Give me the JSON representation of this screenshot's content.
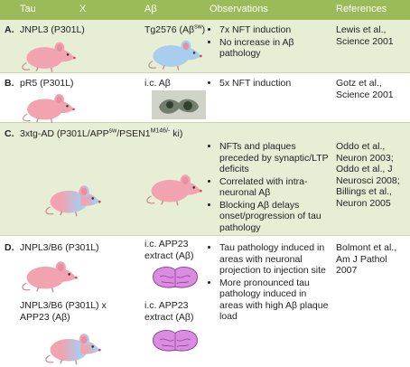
{
  "header": {
    "columns": [
      "Tau",
      "X",
      "Aβ",
      "Observations",
      "References"
    ]
  },
  "rows": [
    {
      "label": "A.",
      "entries": [
        {
          "tau": [
            {
              "text": "JNPL3 (P301L)"
            }
          ],
          "abeta": [
            {
              "text": "Tg2576 (Aβ"
            },
            {
              "text": "sw",
              "sup": true
            },
            {
              "text": ")"
            }
          ]
        }
      ],
      "observations": [
        "7x NFT induction",
        "No increase in Aβ pathology"
      ],
      "references": "Lewis et al., Science 2001"
    },
    {
      "label": "B.",
      "entries": [
        {
          "tau": [
            {
              "text": "pR5 (P301L)"
            }
          ],
          "abeta": [
            {
              "text": "i.c. Aβ"
            }
          ]
        }
      ],
      "observations": [
        "5x NFT induction"
      ],
      "references": "Gotz et al., Science 2001"
    },
    {
      "label": "C.",
      "entries": [
        {
          "tau": [
            {
              "text": "3xtg-AD (P301L/APP"
            },
            {
              "text": "sw",
              "sup": true
            },
            {
              "text": "/PSEN1"
            },
            {
              "text": "M146/-",
              "sup": true
            },
            {
              "text": " ki)"
            }
          ],
          "abeta": []
        }
      ],
      "observations": [
        "NFTs and plaques preceded by synaptic/LTP deficits",
        "Correlated with intra-neuronal Aβ",
        "Blocking Aβ delays onset/progression of tau pathology"
      ],
      "references": "Oddo et al., Neuron 2003; Oddo et al., J Neurosci 2008; Billings et al., Neuron 2005"
    },
    {
      "label": "D.",
      "entries": [
        {
          "tau": [
            {
              "text": "JNPL3/B6 (P301L)"
            }
          ],
          "abeta": [
            {
              "text": "i.c. APP23 extract (Aβ)"
            }
          ]
        },
        {
          "tau": [
            {
              "text": "JNPL3/B6 (P301L) x APP23 (Aβ)"
            }
          ],
          "abeta": [
            {
              "text": "i.c. APP23 extract (Aβ)"
            }
          ]
        }
      ],
      "observations": [
        "Tau pathology induced in areas with neuronal projection to injection site",
        "More pronounced tau pathology induced in areas with high Aβ plaque load"
      ],
      "references": "Bolmont et al., Am J Pathol 2007"
    }
  ]
}
